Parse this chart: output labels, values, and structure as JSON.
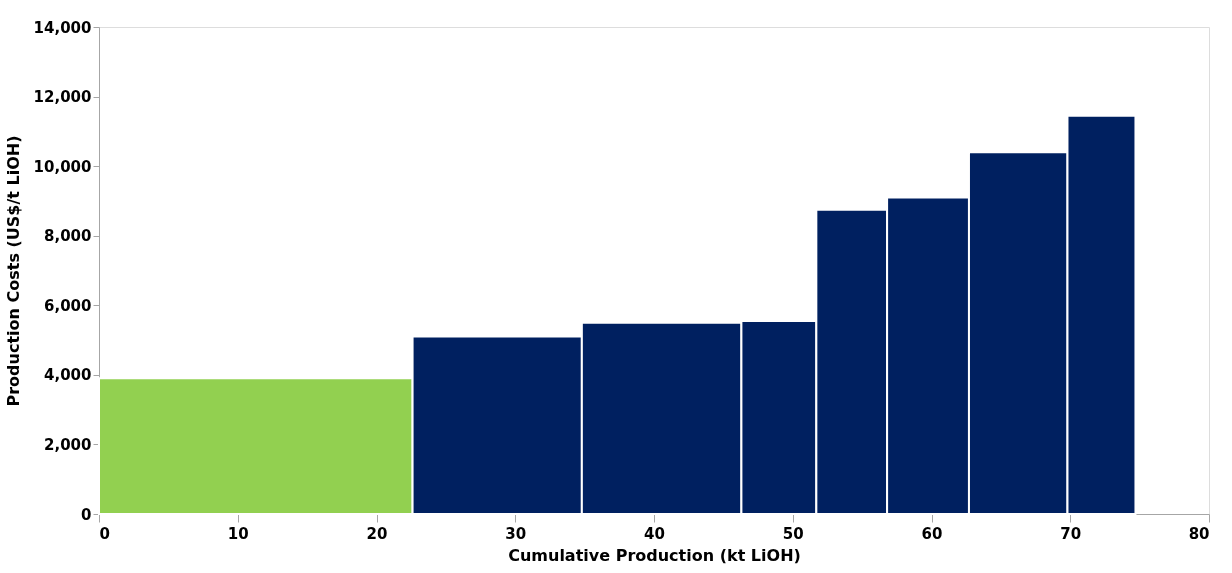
{
  "chart_data": {
    "type": "histogram",
    "xlabel": "Cumulative Production (kt LiOH)",
    "ylabel": "Production Costs (US$/t LiOH)",
    "bins": [
      0,
      22.6,
      34.8,
      46.3,
      51.7,
      56.8,
      62.7,
      69.8,
      74.7
    ],
    "values": [
      3900,
      5100,
      5500,
      5550,
      8750,
      9100,
      10400,
      11450
    ],
    "colors": [
      "#92d050",
      "#002060",
      "#002060",
      "#002060",
      "#002060",
      "#002060",
      "#002060",
      "#002060"
    ],
    "xlim": [
      0,
      80
    ],
    "xticks": [
      0,
      10,
      20,
      30,
      40,
      50,
      60,
      70,
      80
    ],
    "ylim": [
      0,
      14000
    ],
    "yticks": [
      {
        "value": 0,
        "label": "0"
      },
      {
        "value": 2000,
        "label": "2,000"
      },
      {
        "value": 4000,
        "label": "4,000"
      },
      {
        "value": 6000,
        "label": "6,000"
      },
      {
        "value": 8000,
        "label": "8,000"
      },
      {
        "value": 10000,
        "label": "10,000"
      },
      {
        "value": 12000,
        "label": "12,000"
      },
      {
        "value": 14000,
        "label": "14,000"
      }
    ],
    "grid": false
  }
}
